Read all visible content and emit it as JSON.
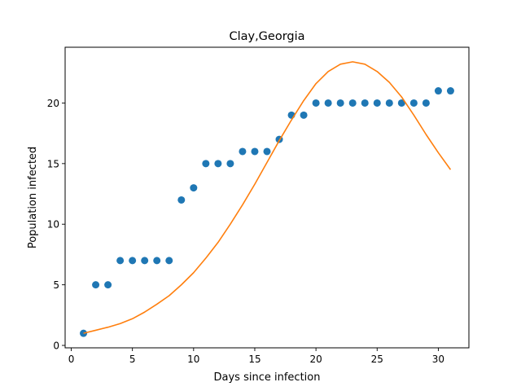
{
  "chart_data": {
    "type": "scatter",
    "title": "Clay,Georgia",
    "xlabel": "Days since infection",
    "ylabel": "Population infected",
    "xlim": [
      -0.5,
      32.5
    ],
    "ylim": [
      -0.2,
      24.6
    ],
    "xticks": [
      0,
      5,
      10,
      15,
      20,
      25,
      30
    ],
    "yticks": [
      0,
      5,
      10,
      15,
      20
    ],
    "grid": false,
    "legend": "none",
    "series": [
      {
        "type": "scatter",
        "color": "#1f77b4",
        "x": [
          1,
          2,
          3,
          4,
          5,
          6,
          7,
          8,
          9,
          10,
          11,
          12,
          13,
          14,
          15,
          16,
          17,
          18,
          19,
          20,
          21,
          22,
          23,
          24,
          25,
          26,
          27,
          28,
          29,
          30,
          31
        ],
        "y": [
          1,
          5,
          5,
          7,
          7,
          7,
          7,
          7,
          12,
          13,
          15,
          15,
          15,
          16,
          16,
          16,
          17,
          19,
          19,
          20,
          20,
          20,
          20,
          20,
          20,
          20,
          20,
          20,
          20,
          21,
          21
        ]
      },
      {
        "type": "line",
        "color": "#ff7f0e",
        "x": [
          1,
          2,
          3,
          4,
          5,
          6,
          7,
          8,
          9,
          10,
          11,
          12,
          13,
          14,
          15,
          16,
          17,
          18,
          19,
          20,
          21,
          22,
          23,
          24,
          25,
          26,
          27,
          28,
          29,
          30,
          31
        ],
        "y": [
          1.0,
          1.25,
          1.5,
          1.8,
          2.2,
          2.75,
          3.4,
          4.1,
          5.0,
          6.0,
          7.2,
          8.5,
          10.0,
          11.6,
          13.3,
          15.1,
          16.9,
          18.6,
          20.2,
          21.6,
          22.6,
          23.2,
          23.4,
          23.2,
          22.6,
          21.7,
          20.5,
          19.0,
          17.4,
          15.9,
          14.5
        ]
      }
    ]
  }
}
